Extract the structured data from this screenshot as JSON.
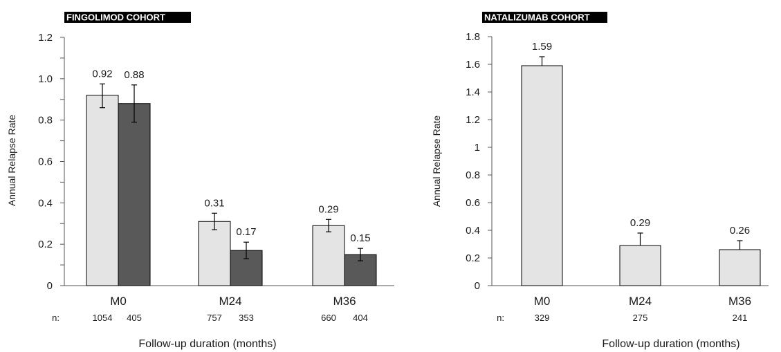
{
  "chart_data": [
    {
      "type": "bar",
      "title": "FINGOLIMOD COHORT",
      "xlabel": "Follow-up duration (months)",
      "ylabel": "Annual Relapse Rate",
      "ylim": [
        0,
        1.2
      ],
      "yticks": [
        "0",
        "0.2",
        "0.4",
        "0.6",
        "0.8",
        "1.0",
        "1.2"
      ],
      "n_prefix": "n:",
      "categories": [
        "M0",
        "M24",
        "M36"
      ],
      "series": [
        {
          "color": "#e4e4e4",
          "values": [
            0.92,
            0.31,
            0.29
          ],
          "value_labels": [
            "0.92",
            "0.31",
            "0.29"
          ],
          "error_low": [
            0.86,
            0.27,
            0.26
          ],
          "error_high": [
            0.975,
            0.35,
            0.32
          ],
          "n": [
            "1054",
            "757",
            "660"
          ]
        },
        {
          "color": "#595959",
          "values": [
            0.88,
            0.17,
            0.15
          ],
          "value_labels": [
            "0.88",
            "0.17",
            "0.15"
          ],
          "error_low": [
            0.79,
            0.13,
            0.12
          ],
          "error_high": [
            0.97,
            0.21,
            0.18
          ],
          "n": [
            "405",
            "353",
            "404"
          ]
        }
      ],
      "grid": false
    },
    {
      "type": "bar",
      "title": "NATALIZUMAB COHORT",
      "xlabel": "Follow-up duration (months)",
      "ylabel": "Annual Relapse Rate",
      "ylim": [
        0,
        1.8
      ],
      "yticks": [
        "0",
        "0.2",
        "0.4",
        "0.6",
        "0.8",
        "1",
        "1.2",
        "1.4",
        "1.6",
        "1.8"
      ],
      "n_prefix": "n:",
      "categories": [
        "M0",
        "M24",
        "M36"
      ],
      "series": [
        {
          "color": "#e4e4e4",
          "values": [
            1.59,
            0.29,
            0.26
          ],
          "value_labels": [
            "1.59",
            "0.29",
            "0.26"
          ],
          "error_low": [
            1.59,
            0.29,
            0.26
          ],
          "error_high": [
            1.655,
            0.38,
            0.325
          ],
          "n": [
            "329",
            "275",
            "241"
          ]
        }
      ],
      "grid": false
    }
  ]
}
